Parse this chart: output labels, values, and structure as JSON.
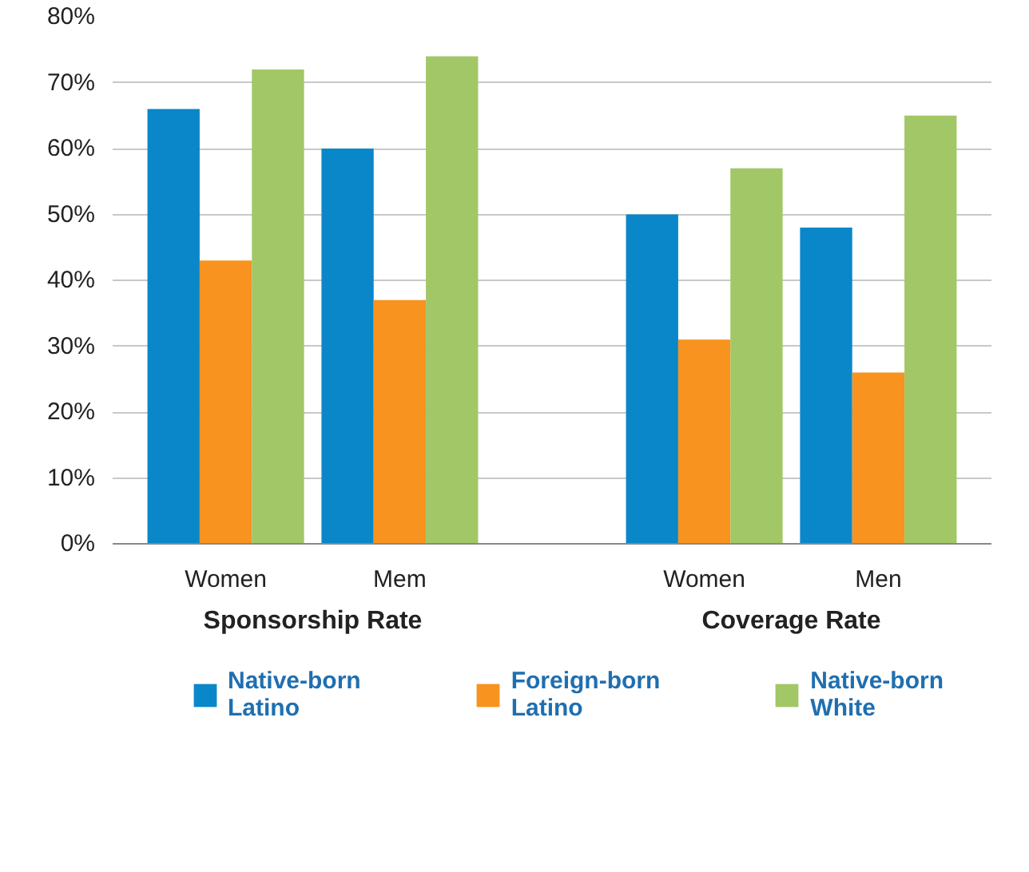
{
  "chart_data": {
    "type": "bar",
    "categories": [
      "Women",
      "Mem",
      "Women",
      "Men"
    ],
    "annotations": [
      "Sponsorship Rate",
      "Coverage Rate"
    ],
    "series": [
      {
        "name": "Native-born\nLatino",
        "color": "#0a87c9",
        "values": [
          66,
          60,
          50,
          48
        ]
      },
      {
        "name": "Foreign-born\nLatino",
        "color": "#f7931e",
        "values": [
          43,
          37,
          31,
          26
        ]
      },
      {
        "name": "Native-born\nWhite",
        "color": "#a2c766",
        "values": [
          72,
          74,
          57,
          65
        ]
      }
    ],
    "ylim": [
      0,
      80
    ],
    "yticks": [
      {
        "value": 0,
        "label": "0%"
      },
      {
        "value": 10,
        "label": "10%"
      },
      {
        "value": 20,
        "label": "20%"
      },
      {
        "value": 30,
        "label": "30%"
      },
      {
        "value": 40,
        "label": "40%"
      },
      {
        "value": 50,
        "label": "50%"
      },
      {
        "value": 60,
        "label": "60%"
      },
      {
        "value": 70,
        "label": "70%"
      },
      {
        "value": 80,
        "label": "80%"
      }
    ],
    "grid": "y",
    "legend": "bottom"
  }
}
